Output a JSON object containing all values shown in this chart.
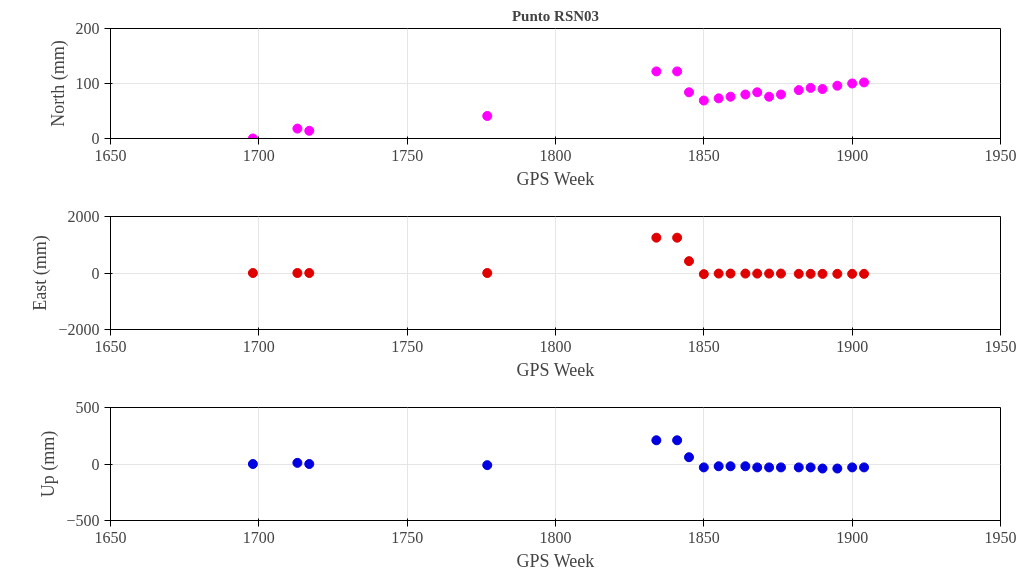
{
  "chart_data": [
    {
      "type": "scatter",
      "title": "Punto RSN03",
      "xlabel": "GPS Week",
      "ylabel": "North (mm)",
      "marker": "circle",
      "grid": true,
      "x": [
        1698,
        1713,
        1717,
        1777,
        1834,
        1841,
        1845,
        1850,
        1855,
        1859,
        1864,
        1868,
        1872,
        1876,
        1882,
        1886,
        1890,
        1895,
        1900,
        1904
      ],
      "series": [
        {
          "color": "#ff00ff",
          "values": [
            0,
            18,
            14,
            41,
            122,
            122,
            84,
            69,
            73,
            76,
            80,
            84,
            76,
            80,
            88,
            92,
            90,
            96,
            100,
            102
          ]
        }
      ],
      "xlim": [
        1650,
        1950
      ],
      "xticks": [
        1650,
        1700,
        1750,
        1800,
        1850,
        1900,
        1950
      ],
      "ylim": [
        0,
        200
      ],
      "yticks": [
        0,
        100,
        200
      ]
    },
    {
      "type": "scatter",
      "xlabel": "GPS Week",
      "ylabel": "East (mm)",
      "marker": "circle",
      "grid": true,
      "x": [
        1698,
        1713,
        1717,
        1777,
        1834,
        1841,
        1845,
        1850,
        1855,
        1859,
        1864,
        1868,
        1872,
        1876,
        1882,
        1886,
        1890,
        1895,
        1900,
        1904
      ],
      "series": [
        {
          "color": "#e00000",
          "values": [
            0,
            0,
            0,
            0,
            1250,
            1250,
            420,
            -40,
            -20,
            -20,
            -20,
            -20,
            -20,
            -20,
            -30,
            -30,
            -30,
            -30,
            -30,
            -30
          ]
        }
      ],
      "xlim": [
        1650,
        1950
      ],
      "xticks": [
        1650,
        1700,
        1750,
        1800,
        1850,
        1900,
        1950
      ],
      "ylim": [
        -2000,
        2000
      ],
      "yticks": [
        -2000,
        0,
        2000
      ]
    },
    {
      "type": "scatter",
      "xlabel": "GPS Week",
      "ylabel": "Up (mm)",
      "marker": "circle",
      "grid": true,
      "x": [
        1698,
        1713,
        1717,
        1777,
        1834,
        1841,
        1845,
        1850,
        1855,
        1859,
        1864,
        1868,
        1872,
        1876,
        1882,
        1886,
        1890,
        1895,
        1900,
        1904
      ],
      "series": [
        {
          "color": "#0000e0",
          "values": [
            0,
            10,
            0,
            -10,
            210,
            210,
            60,
            -30,
            -20,
            -20,
            -20,
            -30,
            -30,
            -30,
            -30,
            -30,
            -40,
            -40,
            -30,
            -30
          ]
        }
      ],
      "xlim": [
        1650,
        1950
      ],
      "xticks": [
        1650,
        1700,
        1750,
        1800,
        1850,
        1900,
        1950
      ],
      "ylim": [
        -500,
        500
      ],
      "yticks": [
        -500,
        0,
        500
      ]
    }
  ]
}
